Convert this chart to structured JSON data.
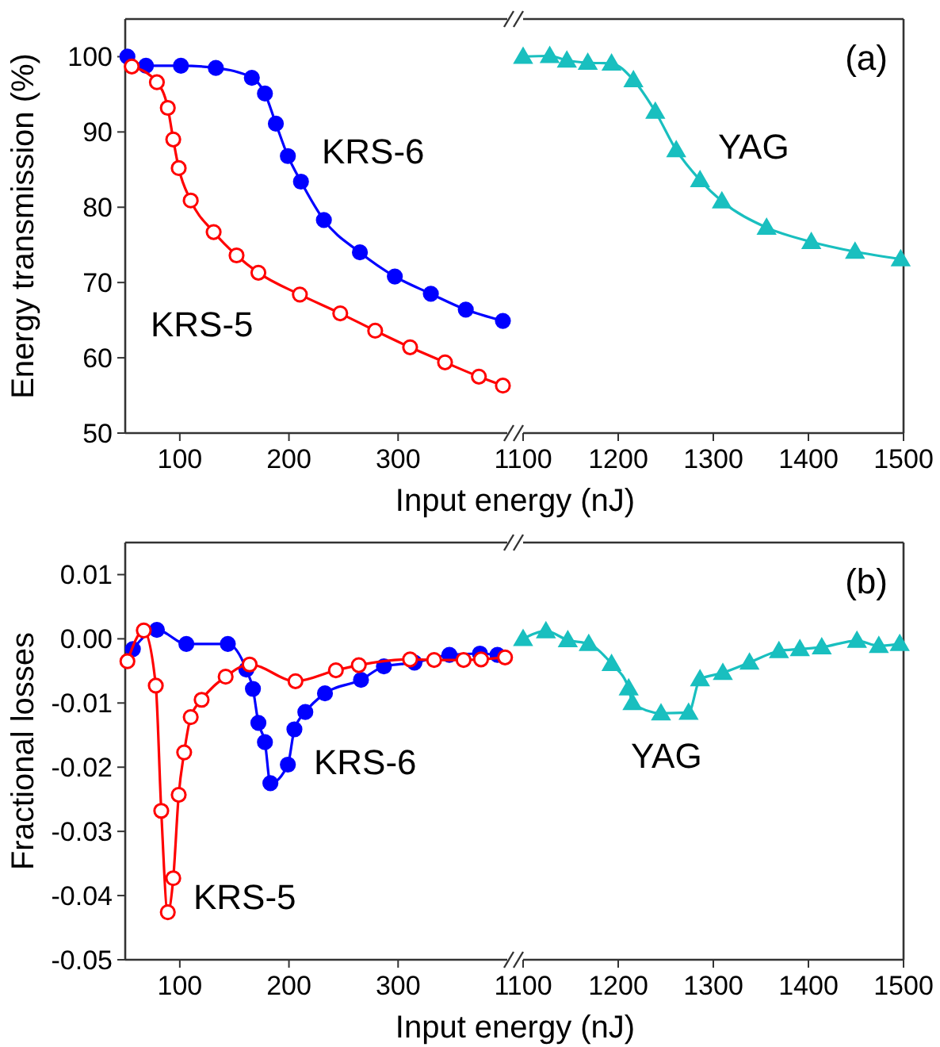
{
  "chart_data": [
    {
      "type": "line",
      "ylabel": "Energy transmission (%)",
      "xlabel": "Input energy (nJ)",
      "xlim": [
        50,
        400
      ],
      "xticks": [
        100,
        200,
        300
      ],
      "ylim": [
        50,
        105
      ],
      "yticks": [
        50,
        60,
        70,
        80,
        90,
        100
      ],
      "line_style": "solid",
      "series": [
        {
          "name": "KRS-6",
          "color": "#0000ff",
          "marker": "circle",
          "x": [
            52,
            69,
            101,
            133,
            166,
            178,
            188,
            199,
            211,
            232,
            265,
            297,
            330,
            362,
            396
          ],
          "values": [
            100,
            98.8,
            98.8,
            98.5,
            97.2,
            95.1,
            91.1,
            86.8,
            83.4,
            78.3,
            74.0,
            70.8,
            68.5,
            66.4,
            64.9
          ]
        },
        {
          "name": "KRS-5",
          "color": "#ff0000",
          "marker": "circle",
          "x": [
            56,
            79,
            89,
            94,
            99,
            110,
            131,
            152,
            172,
            210,
            247,
            279,
            311,
            343,
            374,
            396
          ],
          "values": [
            98.7,
            96.6,
            93.2,
            89.0,
            85.2,
            80.9,
            76.7,
            73.6,
            71.3,
            68.4,
            65.9,
            63.6,
            61.4,
            59.4,
            57.5,
            56.3
          ]
        }
      ]
    },
    {
      "type": "line",
      "xlim": [
        1100,
        1500
      ],
      "xticks": [
        1100,
        1200,
        1300,
        1400,
        1500
      ],
      "ylim": [
        50,
        105
      ],
      "tick_labels": "x",
      "line_style": "solid",
      "annotations": [
        "(a)"
      ],
      "series": [
        {
          "name": "YAG",
          "color": "#19bfbf",
          "marker": "triangle",
          "x": [
            1100,
            1128,
            1146,
            1168,
            1193,
            1216,
            1239,
            1261,
            1286,
            1309,
            1356,
            1403,
            1449,
            1497
          ],
          "values": [
            100,
            100.1,
            99.5,
            99.2,
            99.1,
            96.9,
            92.7,
            87.6,
            83.6,
            80.8,
            77.3,
            75.4,
            74.1,
            73.1
          ]
        }
      ]
    },
    {
      "type": "line",
      "ylabel": "Fractional losses",
      "xlabel": "Input energy (nJ)",
      "xlim": [
        50,
        400
      ],
      "xticks": [
        100,
        200,
        300
      ],
      "ylim": [
        -0.05,
        0.015
      ],
      "yticks": [
        {
          "value": 0.01,
          "label": "0.01"
        },
        {
          "value": 0,
          "label": "0.00"
        },
        {
          "value": -0.01,
          "label": "-0.01"
        },
        {
          "value": -0.02,
          "label": "-0.02"
        },
        {
          "value": -0.03,
          "label": "-0.03"
        },
        {
          "value": -0.04,
          "label": "-0.04"
        },
        {
          "value": -0.05,
          "label": "-0.05"
        }
      ],
      "line_style": "solid",
      "series": [
        {
          "name": "KRS-6",
          "color": "#0000ff",
          "marker": "circle",
          "x": [
            57,
            79,
            106,
            144,
            161,
            167,
            172,
            178,
            183,
            199,
            205,
            215,
            233,
            266,
            287,
            315,
            347,
            375,
            391
          ],
          "values": [
            -0.0016,
            0.0014,
            -0.0008,
            -0.0008,
            -0.0048,
            -0.0078,
            -0.0131,
            -0.0161,
            -0.0225,
            -0.0196,
            -0.0141,
            -0.0114,
            -0.0085,
            -0.0064,
            -0.0043,
            -0.0037,
            -0.0025,
            -0.0023,
            -0.0025
          ]
        },
        {
          "name": "KRS-5",
          "color": "#ff0000",
          "marker": "circle",
          "x": [
            52,
            67,
            78,
            83,
            89,
            94,
            99,
            104,
            110,
            120,
            142,
            164,
            206,
            243,
            264,
            311,
            333,
            360,
            376,
            398
          ],
          "values": [
            -0.0035,
            0.0013,
            -0.0073,
            -0.0268,
            -0.0426,
            -0.0373,
            -0.0243,
            -0.0177,
            -0.0122,
            -0.0095,
            -0.0059,
            -0.004,
            -0.0066,
            -0.0049,
            -0.0041,
            -0.0032,
            -0.0033,
            -0.0033,
            -0.0032,
            -0.0029
          ]
        }
      ]
    },
    {
      "type": "line",
      "xlim": [
        1100,
        1500
      ],
      "xticks": [
        1100,
        1200,
        1300,
        1400,
        1500
      ],
      "ylim": [
        -0.05,
        0.015
      ],
      "tick_labels": "x",
      "line_style": "solid",
      "annotations": [
        "(b)"
      ],
      "series": [
        {
          "name": "YAG",
          "color": "#19bfbf",
          "marker": "triangle",
          "x": [
            1100,
            1124,
            1147,
            1169,
            1193,
            1211,
            1215,
            1245,
            1274,
            1286,
            1310,
            1338,
            1369,
            1391,
            1414,
            1451,
            1474,
            1496
          ],
          "values": [
            0,
            0.0012,
            -0.0002,
            -0.0008,
            -0.0039,
            -0.0077,
            -0.01,
            -0.0116,
            -0.0115,
            -0.0063,
            -0.0053,
            -0.0037,
            -0.0019,
            -0.0016,
            -0.0013,
            -0.0003,
            -0.0011,
            -0.0008
          ]
        }
      ]
    }
  ]
}
